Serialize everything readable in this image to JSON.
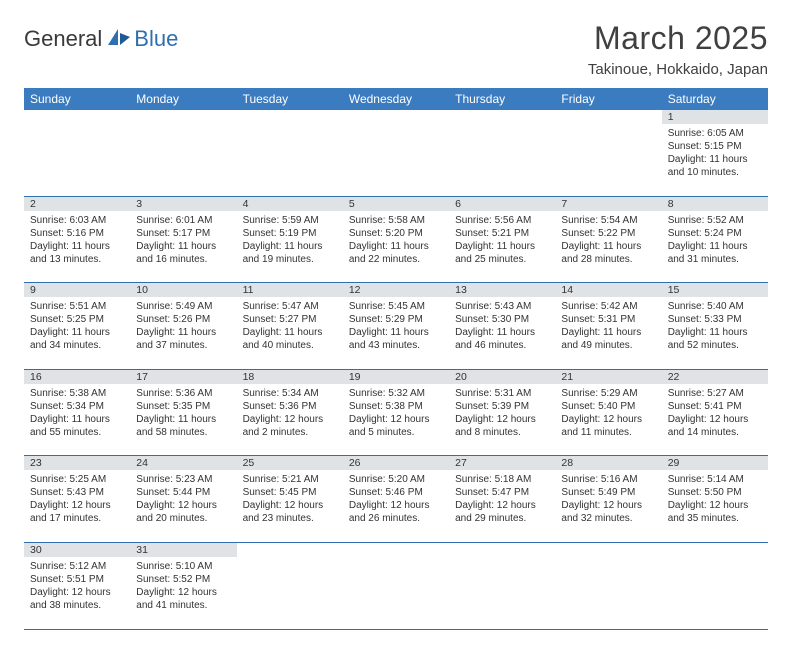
{
  "logo": {
    "text1": "General",
    "text2": "Blue"
  },
  "title": "March 2025",
  "location": "Takinoue, Hokkaido, Japan",
  "colors": {
    "header_bg": "#3b7bbf",
    "header_text": "#ffffff",
    "daynum_bg": "#dfe3e6",
    "rule": "#2f6fb0",
    "title_color": "#404040",
    "logo_gray": "#3a3a3a",
    "logo_blue": "#2f6fb0"
  },
  "weekdays": [
    "Sunday",
    "Monday",
    "Tuesday",
    "Wednesday",
    "Thursday",
    "Friday",
    "Saturday"
  ],
  "weeks": [
    [
      null,
      null,
      null,
      null,
      null,
      null,
      {
        "n": "1",
        "sr": "Sunrise: 6:05 AM",
        "ss": "Sunset: 5:15 PM",
        "dl": "Daylight: 11 hours and 10 minutes."
      }
    ],
    [
      {
        "n": "2",
        "sr": "Sunrise: 6:03 AM",
        "ss": "Sunset: 5:16 PM",
        "dl": "Daylight: 11 hours and 13 minutes."
      },
      {
        "n": "3",
        "sr": "Sunrise: 6:01 AM",
        "ss": "Sunset: 5:17 PM",
        "dl": "Daylight: 11 hours and 16 minutes."
      },
      {
        "n": "4",
        "sr": "Sunrise: 5:59 AM",
        "ss": "Sunset: 5:19 PM",
        "dl": "Daylight: 11 hours and 19 minutes."
      },
      {
        "n": "5",
        "sr": "Sunrise: 5:58 AM",
        "ss": "Sunset: 5:20 PM",
        "dl": "Daylight: 11 hours and 22 minutes."
      },
      {
        "n": "6",
        "sr": "Sunrise: 5:56 AM",
        "ss": "Sunset: 5:21 PM",
        "dl": "Daylight: 11 hours and 25 minutes."
      },
      {
        "n": "7",
        "sr": "Sunrise: 5:54 AM",
        "ss": "Sunset: 5:22 PM",
        "dl": "Daylight: 11 hours and 28 minutes."
      },
      {
        "n": "8",
        "sr": "Sunrise: 5:52 AM",
        "ss": "Sunset: 5:24 PM",
        "dl": "Daylight: 11 hours and 31 minutes."
      }
    ],
    [
      {
        "n": "9",
        "sr": "Sunrise: 5:51 AM",
        "ss": "Sunset: 5:25 PM",
        "dl": "Daylight: 11 hours and 34 minutes."
      },
      {
        "n": "10",
        "sr": "Sunrise: 5:49 AM",
        "ss": "Sunset: 5:26 PM",
        "dl": "Daylight: 11 hours and 37 minutes."
      },
      {
        "n": "11",
        "sr": "Sunrise: 5:47 AM",
        "ss": "Sunset: 5:27 PM",
        "dl": "Daylight: 11 hours and 40 minutes."
      },
      {
        "n": "12",
        "sr": "Sunrise: 5:45 AM",
        "ss": "Sunset: 5:29 PM",
        "dl": "Daylight: 11 hours and 43 minutes."
      },
      {
        "n": "13",
        "sr": "Sunrise: 5:43 AM",
        "ss": "Sunset: 5:30 PM",
        "dl": "Daylight: 11 hours and 46 minutes."
      },
      {
        "n": "14",
        "sr": "Sunrise: 5:42 AM",
        "ss": "Sunset: 5:31 PM",
        "dl": "Daylight: 11 hours and 49 minutes."
      },
      {
        "n": "15",
        "sr": "Sunrise: 5:40 AM",
        "ss": "Sunset: 5:33 PM",
        "dl": "Daylight: 11 hours and 52 minutes."
      }
    ],
    [
      {
        "n": "16",
        "sr": "Sunrise: 5:38 AM",
        "ss": "Sunset: 5:34 PM",
        "dl": "Daylight: 11 hours and 55 minutes."
      },
      {
        "n": "17",
        "sr": "Sunrise: 5:36 AM",
        "ss": "Sunset: 5:35 PM",
        "dl": "Daylight: 11 hours and 58 minutes."
      },
      {
        "n": "18",
        "sr": "Sunrise: 5:34 AM",
        "ss": "Sunset: 5:36 PM",
        "dl": "Daylight: 12 hours and 2 minutes."
      },
      {
        "n": "19",
        "sr": "Sunrise: 5:32 AM",
        "ss": "Sunset: 5:38 PM",
        "dl": "Daylight: 12 hours and 5 minutes."
      },
      {
        "n": "20",
        "sr": "Sunrise: 5:31 AM",
        "ss": "Sunset: 5:39 PM",
        "dl": "Daylight: 12 hours and 8 minutes."
      },
      {
        "n": "21",
        "sr": "Sunrise: 5:29 AM",
        "ss": "Sunset: 5:40 PM",
        "dl": "Daylight: 12 hours and 11 minutes."
      },
      {
        "n": "22",
        "sr": "Sunrise: 5:27 AM",
        "ss": "Sunset: 5:41 PM",
        "dl": "Daylight: 12 hours and 14 minutes."
      }
    ],
    [
      {
        "n": "23",
        "sr": "Sunrise: 5:25 AM",
        "ss": "Sunset: 5:43 PM",
        "dl": "Daylight: 12 hours and 17 minutes."
      },
      {
        "n": "24",
        "sr": "Sunrise: 5:23 AM",
        "ss": "Sunset: 5:44 PM",
        "dl": "Daylight: 12 hours and 20 minutes."
      },
      {
        "n": "25",
        "sr": "Sunrise: 5:21 AM",
        "ss": "Sunset: 5:45 PM",
        "dl": "Daylight: 12 hours and 23 minutes."
      },
      {
        "n": "26",
        "sr": "Sunrise: 5:20 AM",
        "ss": "Sunset: 5:46 PM",
        "dl": "Daylight: 12 hours and 26 minutes."
      },
      {
        "n": "27",
        "sr": "Sunrise: 5:18 AM",
        "ss": "Sunset: 5:47 PM",
        "dl": "Daylight: 12 hours and 29 minutes."
      },
      {
        "n": "28",
        "sr": "Sunrise: 5:16 AM",
        "ss": "Sunset: 5:49 PM",
        "dl": "Daylight: 12 hours and 32 minutes."
      },
      {
        "n": "29",
        "sr": "Sunrise: 5:14 AM",
        "ss": "Sunset: 5:50 PM",
        "dl": "Daylight: 12 hours and 35 minutes."
      }
    ],
    [
      {
        "n": "30",
        "sr": "Sunrise: 5:12 AM",
        "ss": "Sunset: 5:51 PM",
        "dl": "Daylight: 12 hours and 38 minutes."
      },
      {
        "n": "31",
        "sr": "Sunrise: 5:10 AM",
        "ss": "Sunset: 5:52 PM",
        "dl": "Daylight: 12 hours and 41 minutes."
      },
      null,
      null,
      null,
      null,
      null
    ]
  ]
}
